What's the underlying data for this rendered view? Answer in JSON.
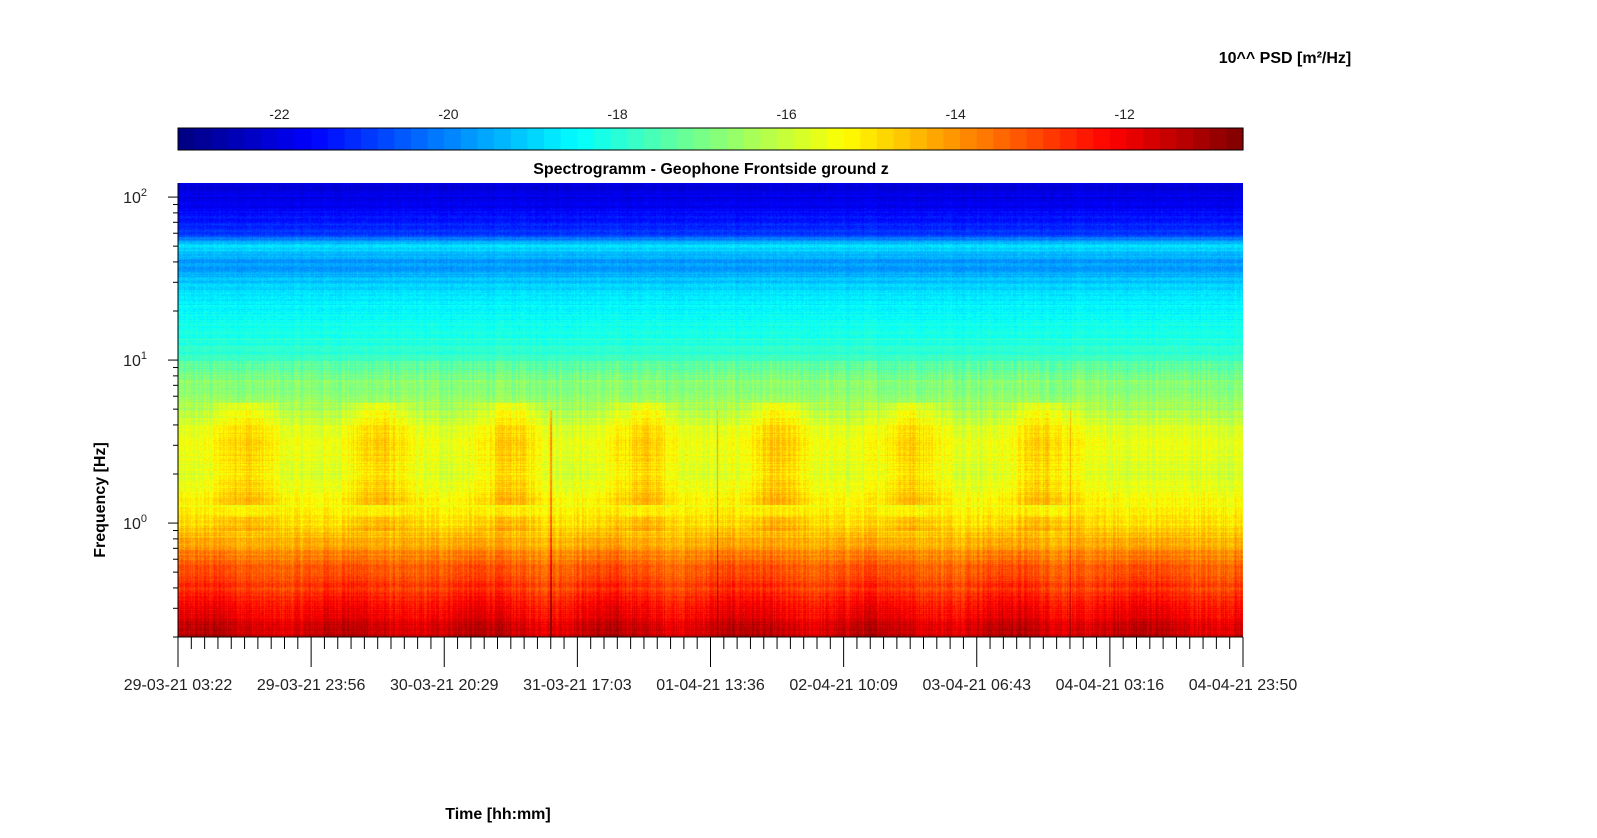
{
  "chart_data": {
    "type": "heatmap",
    "title": "Spectrogramm - Geophone Frontside ground z",
    "xlabel": "Time [hh:mm]",
    "ylabel": "Frequency [Hz]",
    "colorbar": {
      "label": "10^^ PSD [m²/Hz]",
      "ticks": [
        -22,
        -20,
        -18,
        -16,
        -14,
        -12
      ],
      "range": [
        -23.2,
        -10.6
      ],
      "colormap": "jet",
      "position": "top"
    },
    "x_ticks": [
      "29-03-21 03:22",
      "29-03-21 23:56",
      "30-03-21 20:29",
      "31-03-21 17:03",
      "01-04-21 13:36",
      "02-04-21 10:09",
      "03-04-21 06:43",
      "04-04-21 03:16",
      "04-04-21 23:50"
    ],
    "y_scale": "log",
    "y_ticks": [
      {
        "base": "10",
        "exp": "2",
        "value": 100
      },
      {
        "base": "10",
        "exp": "1",
        "value": 10
      },
      {
        "base": "10",
        "exp": "0",
        "value": 1
      }
    ],
    "ylim": [
      0.2,
      122
    ],
    "frequency_bands": [
      {
        "f_hz": 100,
        "log10_psd": -22.0
      },
      {
        "f_hz": 60,
        "log10_psd": -21.0
      },
      {
        "f_hz": 50,
        "log10_psd": -18.8
      },
      {
        "f_hz": 40,
        "log10_psd": -19.8
      },
      {
        "f_hz": 25,
        "log10_psd": -18.7
      },
      {
        "f_hz": 12,
        "log10_psd": -18.0
      },
      {
        "f_hz": 8,
        "log10_psd": -16.9
      },
      {
        "f_hz": 5,
        "log10_psd": -16.4
      },
      {
        "f_hz": 3.2,
        "log10_psd": -15.5
      },
      {
        "f_hz": 2,
        "log10_psd": -15.8
      },
      {
        "f_hz": 1.0,
        "log10_psd": -15.0
      },
      {
        "f_hz": 0.6,
        "log10_psd": -13.6
      },
      {
        "f_hz": 0.3,
        "log10_psd": -12.2
      },
      {
        "f_hz": 0.2,
        "log10_psd": -11.3
      }
    ],
    "daily_activity_peaks": [
      0.5,
      1.5,
      2.5,
      3.5,
      4.5,
      5.5,
      6.5
    ],
    "spikes_x_index": [
      2.8,
      4.05,
      6.7
    ]
  }
}
